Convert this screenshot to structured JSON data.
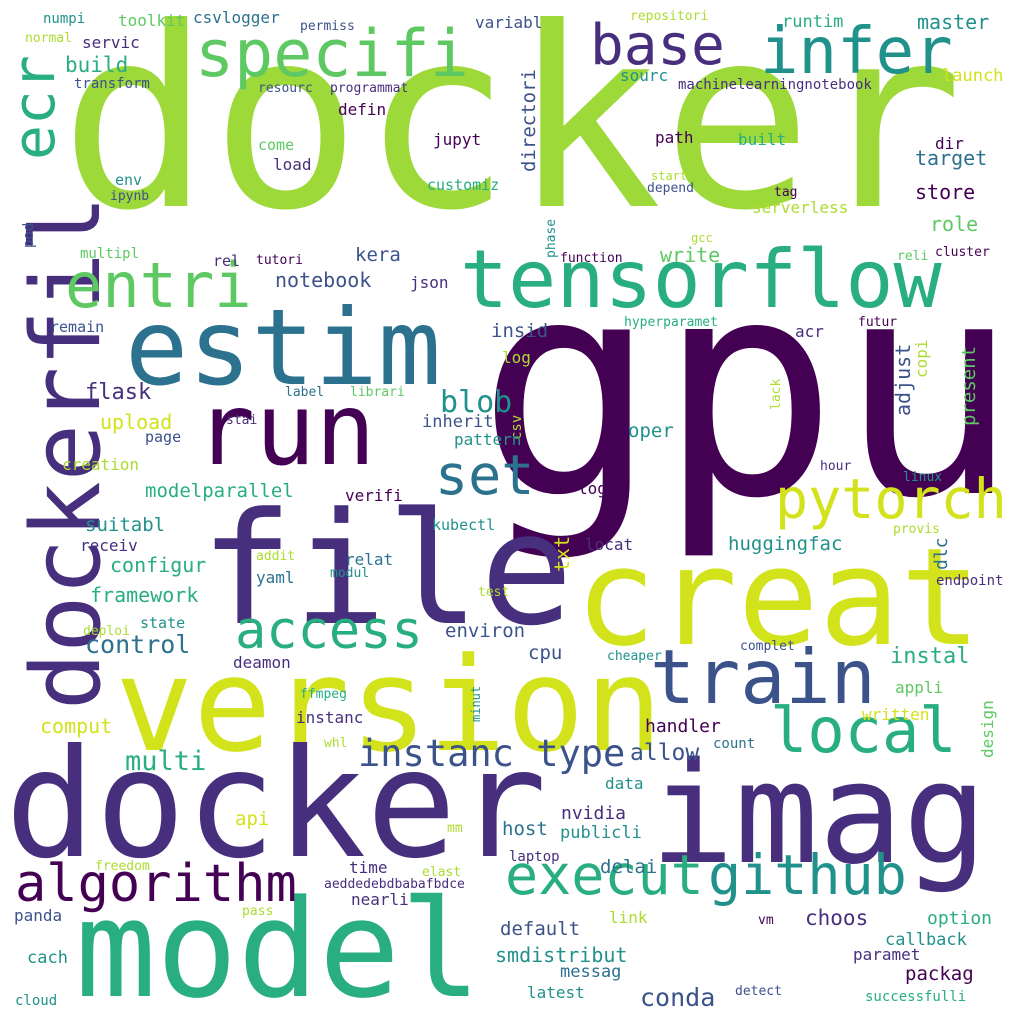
{
  "palette": {
    "c1": "#440154",
    "c2": "#472f7d",
    "c3": "#3b528b",
    "c4": "#2c728e",
    "c5": "#21918c",
    "c6": "#28ae80",
    "c7": "#5ec962",
    "c8": "#addc30",
    "c9": "#d2e21b",
    "c10": "#9ed93a"
  },
  "words": [
    "docker",
    "gpu",
    "file",
    "creat",
    "version",
    "imag",
    "model",
    "estim",
    "run",
    "tensorflow",
    "train",
    "local",
    "execut",
    "github",
    "algorithm",
    "dockerfil",
    "entri",
    "access",
    "set",
    "pytorch",
    "base",
    "infer",
    "specifi",
    "instanc type",
    "docker",
    "ecr",
    "blob",
    "multi",
    "conda",
    "flask",
    "control",
    "allow",
    "notebook",
    "modelparallel",
    "configur",
    "framework",
    "environ",
    "huggingfac",
    "smdistribut",
    "default",
    "choos",
    "packag",
    "instal",
    "build",
    "target",
    "store",
    "role",
    "kera",
    "write",
    "upload",
    "comput",
    "api",
    "host",
    "delai",
    "master",
    "launch",
    "runtim",
    "directori",
    "present",
    "adjust",
    "dlc",
    "txt",
    "servic",
    "toolkit",
    "csvlogger",
    "numpi",
    "transform",
    "normal",
    "permiss",
    "variabl",
    "repositori",
    "sourc",
    "machinelearningnotebook",
    "resourc",
    "programmat",
    "defin",
    "path",
    "built",
    "jupyt",
    "come",
    "load",
    "env",
    "ipynb",
    "customiz",
    "depend",
    "start",
    "tag",
    "serverless",
    "phase",
    "pod",
    "dir",
    "cluster",
    "reli",
    "gcc",
    "function",
    "multipl",
    "rel",
    "tutori",
    "json",
    "remain",
    "insid",
    "log",
    "hyperparamet",
    "acr",
    "futur",
    "copi",
    "label",
    "librari",
    "lack",
    "stai",
    "inherit",
    "csv",
    "page",
    "pattern",
    "creation",
    "oper",
    "hour",
    "linux",
    "verifi",
    "login",
    "suitabl",
    "kubectl",
    "receiv",
    "locat",
    "provis",
    "addit",
    "relat",
    "yaml",
    "modul",
    "test",
    "endpoint",
    "deploi",
    "state",
    "cpu",
    "cheaper",
    "complet",
    "deamon",
    "ffmpeg",
    "appli",
    "instanc",
    "minut",
    "written",
    "handler",
    "design",
    "whl",
    "count",
    "data",
    "nvidia",
    "mm",
    "publicli",
    "freedom",
    "time",
    "elast",
    "laptop",
    "aeddedebdbabafbdce",
    "nearli",
    "panda",
    "pass",
    "link",
    "vm",
    "paramet",
    "callback",
    "option",
    "cach",
    "messag",
    "latest",
    "detect",
    "cloud",
    "successfulli"
  ]
}
